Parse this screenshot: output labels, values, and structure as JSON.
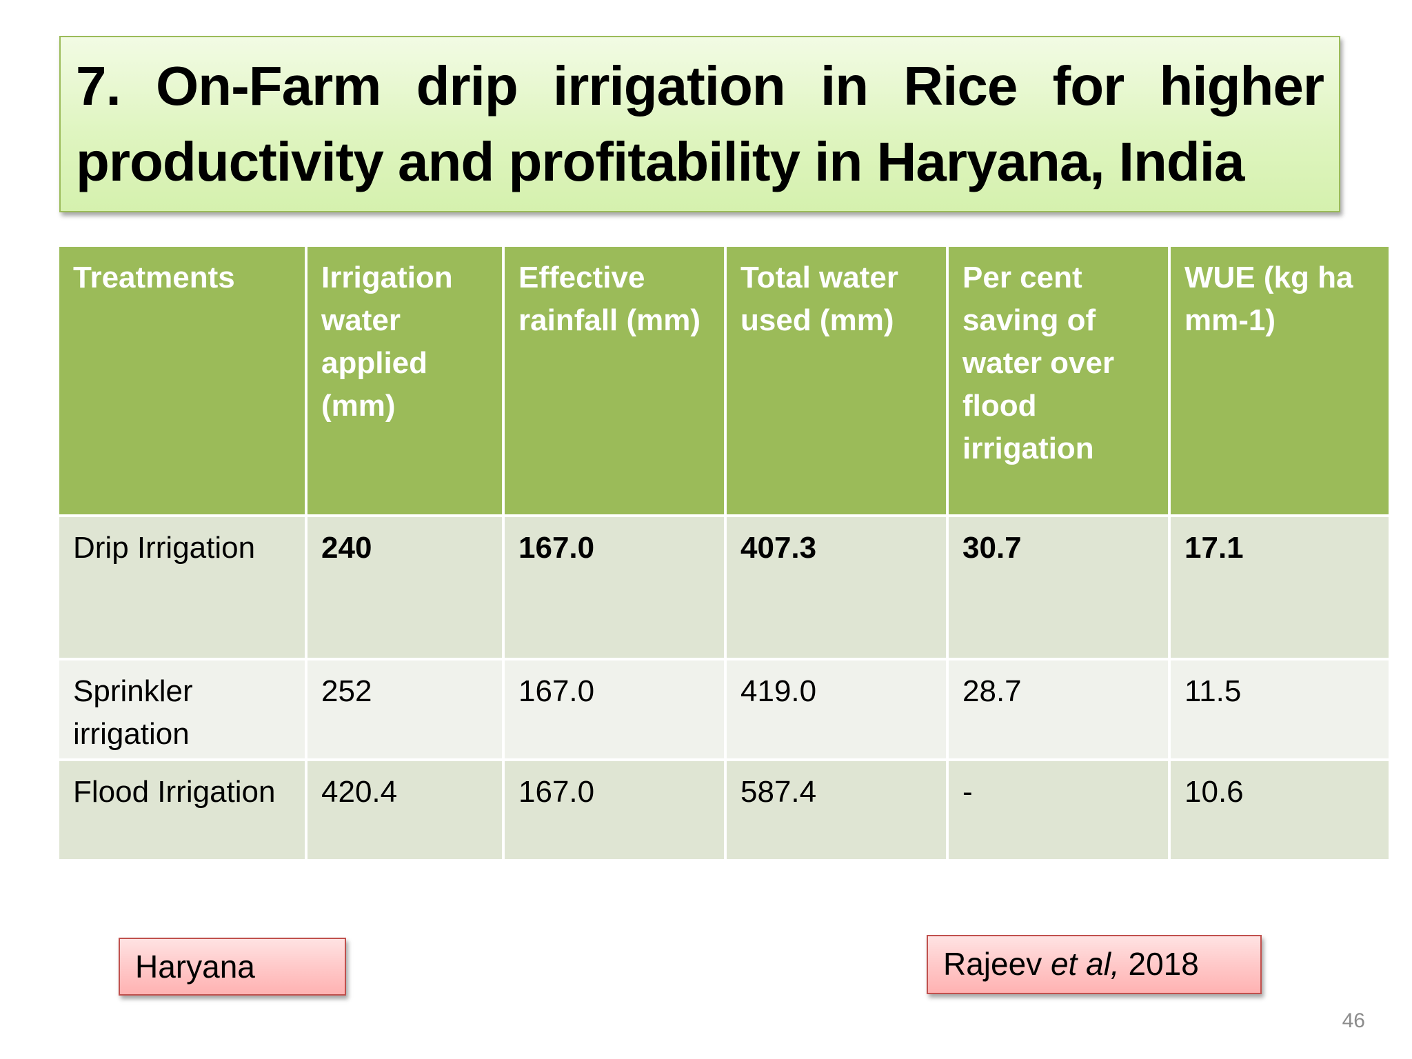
{
  "slide": {
    "title": "7. On-Farm drip irrigation in Rice for higher productivity and profitability in Haryana, India",
    "page_number": "46"
  },
  "table": {
    "headers": [
      "Treatments",
      "Irrigation water applied (mm)",
      "Effective rainfall (mm)",
      "Total water used (mm)",
      "Per cent saving of water over flood irrigation",
      "WUE (kg ha mm-1)"
    ],
    "rows": [
      [
        "Drip Irrigation",
        "240",
        "167.0",
        "407.3",
        "30.7",
        "17.1"
      ],
      [
        "Sprinkler irrigation",
        "252",
        "167.0",
        "419.0",
        "28.7",
        "11.5"
      ],
      [
        "Flood Irrigation",
        "420.4",
        "167.0",
        "587.4",
        "-",
        "10.6"
      ]
    ],
    "header_color": "#9bbb59",
    "row_colors": [
      "#dfe5d3",
      "#f0f2ec",
      "#dfe5d3"
    ]
  },
  "labels": {
    "location": "Haryana",
    "citation_author": "Rajeev ",
    "citation_etal": "et al,",
    "citation_year": " 2018"
  },
  "colors": {
    "title_fill": "#dff5c0",
    "title_border": "#9bbb59",
    "tag_fill": "#ffc9c9",
    "tag_border": "#c0504d"
  }
}
